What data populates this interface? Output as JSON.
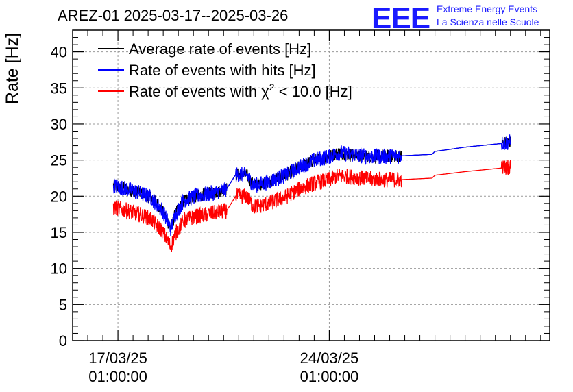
{
  "header": {
    "title": "AREZ-01 2025-03-17--2025-03-26",
    "logo": "EEE",
    "logo_line1": "Extreme Energy Events",
    "logo_line2": "La Scienza nelle Scuole"
  },
  "colors": {
    "average": "#000000",
    "hits": "#0000ff",
    "chi2": "#ff0000",
    "logo": "#1a1aff"
  },
  "chart_data": {
    "type": "line",
    "ylabel": "Rate [Hz]",
    "xlabel": "",
    "ylim": [
      0,
      43
    ],
    "yticks": [
      0,
      5,
      10,
      15,
      20,
      25,
      30,
      35,
      40
    ],
    "xlim_days": [
      -1.5,
      14.3
    ],
    "xticks": [
      {
        "day": 0,
        "line1": "17/03/25",
        "line2": "01:00:00"
      },
      {
        "day": 7,
        "line1": "24/03/25",
        "line2": "01:00:00"
      }
    ],
    "grid": true,
    "legend_position": "top-left",
    "series": [
      {
        "name": "Average rate of events [Hz]",
        "points": [
          [
            -0.15,
            21.5
          ],
          [
            0.3,
            21.0
          ],
          [
            0.7,
            20.5
          ],
          [
            1.1,
            19.8
          ],
          [
            1.45,
            18.2
          ],
          [
            1.65,
            16.5
          ],
          [
            1.75,
            15.5
          ],
          [
            1.9,
            17.5
          ],
          [
            2.2,
            19.5
          ],
          [
            2.6,
            20.0
          ],
          [
            3.2,
            20.5
          ],
          [
            3.6,
            21.0
          ],
          [
            3.9,
            23.0
          ],
          [
            4.25,
            23.0
          ],
          [
            4.5,
            21.5
          ],
          [
            5.0,
            22.0
          ],
          [
            5.6,
            23.0
          ],
          [
            6.0,
            24.0
          ],
          [
            6.5,
            25.0
          ],
          [
            7.0,
            25.5
          ],
          [
            7.3,
            26.0
          ],
          [
            7.7,
            25.8
          ],
          [
            8.3,
            25.5
          ],
          [
            8.8,
            25.5
          ],
          [
            9.4,
            25.6
          ],
          [
            10.4,
            25.8
          ],
          [
            10.5,
            26.2
          ],
          [
            11.5,
            26.8
          ],
          [
            12.7,
            27.3
          ],
          [
            13.0,
            27.5
          ]
        ]
      },
      {
        "name": "Rate of events with hits [Hz]",
        "points": [
          [
            -0.15,
            21.5
          ],
          [
            0.3,
            21.0
          ],
          [
            0.7,
            20.5
          ],
          [
            1.1,
            19.8
          ],
          [
            1.45,
            18.2
          ],
          [
            1.65,
            16.5
          ],
          [
            1.75,
            15.5
          ],
          [
            1.9,
            17.5
          ],
          [
            2.2,
            19.5
          ],
          [
            2.6,
            20.0
          ],
          [
            3.2,
            20.5
          ],
          [
            3.6,
            21.0
          ],
          [
            3.9,
            23.0
          ],
          [
            4.25,
            23.0
          ],
          [
            4.5,
            21.5
          ],
          [
            5.0,
            22.0
          ],
          [
            5.6,
            23.0
          ],
          [
            6.0,
            24.0
          ],
          [
            6.5,
            25.0
          ],
          [
            7.0,
            25.5
          ],
          [
            7.3,
            26.0
          ],
          [
            7.7,
            25.8
          ],
          [
            8.3,
            25.5
          ],
          [
            8.8,
            25.5
          ],
          [
            9.4,
            25.6
          ],
          [
            10.4,
            25.8
          ],
          [
            10.5,
            26.2
          ],
          [
            11.5,
            26.8
          ],
          [
            12.7,
            27.3
          ],
          [
            13.0,
            27.5
          ]
        ]
      },
      {
        "name": "Rate of events with χ2 < 10.0 [Hz]",
        "points": [
          [
            -0.15,
            18.5
          ],
          [
            0.3,
            18.0
          ],
          [
            0.7,
            17.5
          ],
          [
            1.1,
            16.8
          ],
          [
            1.45,
            15.3
          ],
          [
            1.65,
            13.8
          ],
          [
            1.75,
            13.0
          ],
          [
            1.9,
            14.8
          ],
          [
            2.2,
            16.7
          ],
          [
            2.6,
            17.2
          ],
          [
            3.2,
            17.7
          ],
          [
            3.6,
            18.0
          ],
          [
            3.9,
            20.0
          ],
          [
            4.25,
            20.0
          ],
          [
            4.5,
            18.5
          ],
          [
            5.0,
            19.0
          ],
          [
            5.6,
            20.0
          ],
          [
            6.0,
            21.0
          ],
          [
            6.5,
            21.8
          ],
          [
            7.0,
            22.3
          ],
          [
            7.3,
            22.8
          ],
          [
            7.7,
            22.7
          ],
          [
            8.3,
            22.4
          ],
          [
            8.8,
            22.3
          ],
          [
            9.4,
            22.3
          ],
          [
            10.4,
            22.5
          ],
          [
            10.5,
            22.9
          ],
          [
            11.5,
            23.4
          ],
          [
            12.7,
            23.9
          ],
          [
            13.0,
            24.1
          ]
        ]
      }
    ],
    "legend": [
      {
        "name": "Average rate of events [Hz]",
        "color": "#000000"
      },
      {
        "name": "Rate of events with hits [Hz]",
        "color": "#0000ff"
      },
      {
        "name": "Rate of events with χ2 < 10.0 [Hz]",
        "color": "#ff0000"
      }
    ]
  }
}
